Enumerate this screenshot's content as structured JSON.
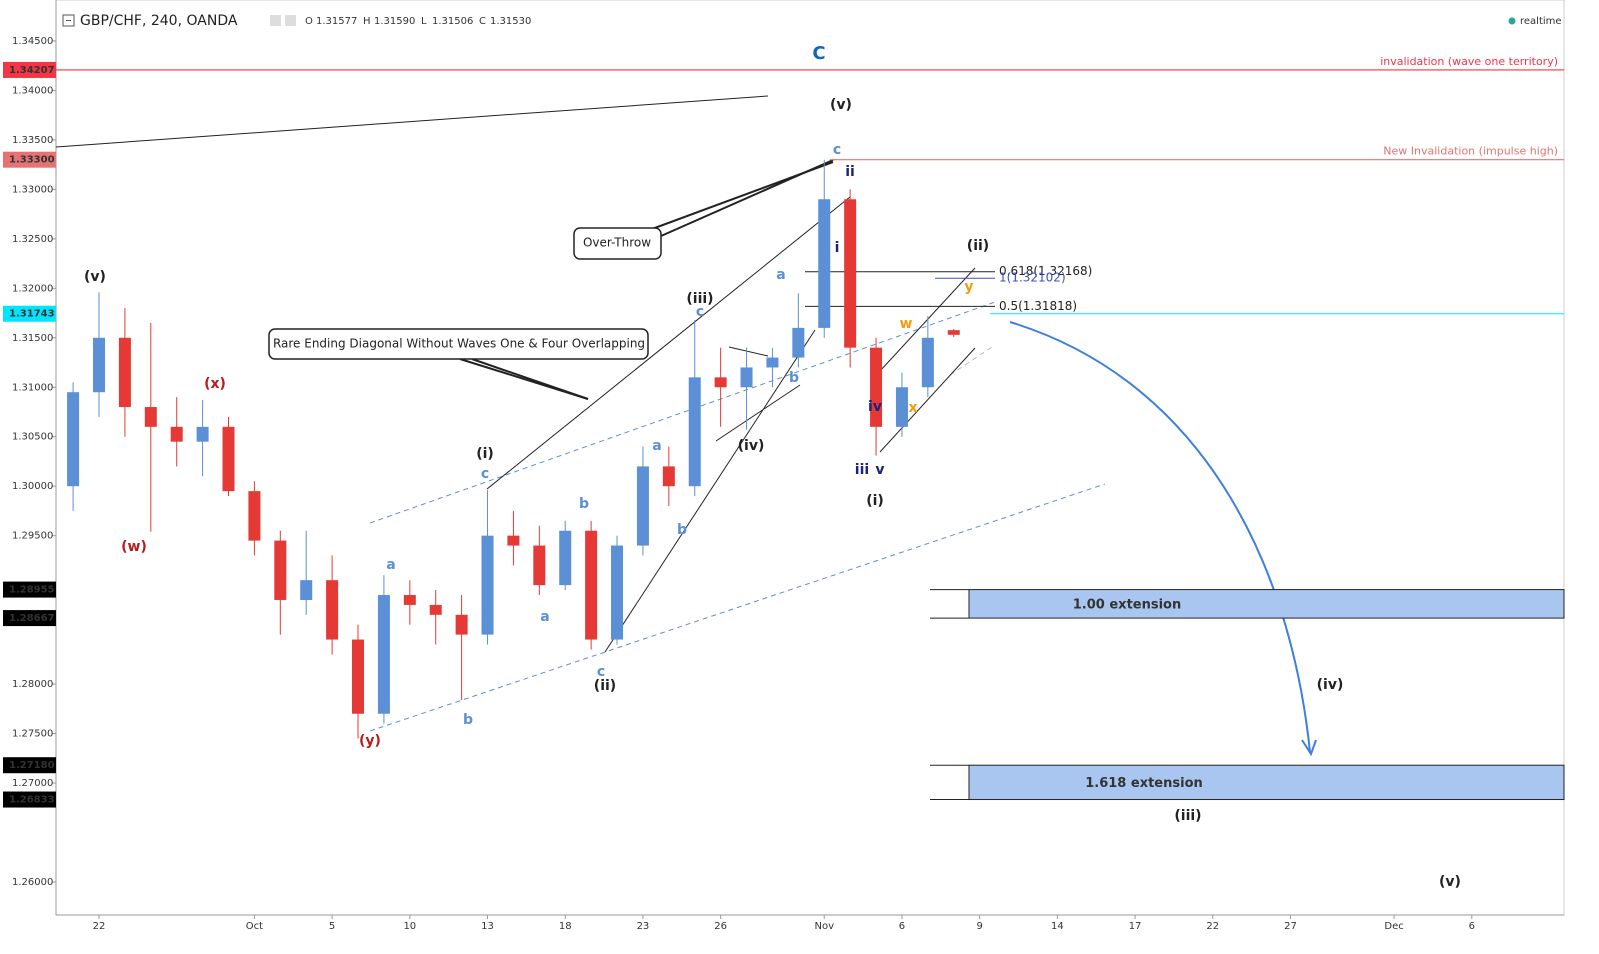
{
  "chart_data": {
    "type": "candlestick",
    "title": "GBP/CHF, 240, OANDA",
    "ohlc": [
      {
        "name": "O",
        "value": 1.31577,
        "label": "1.31577"
      },
      {
        "name": "H",
        "value": 1.3159,
        "label": "1.31590"
      },
      {
        "name": "L",
        "value": 1.31506,
        "label": "1.31506"
      },
      {
        "name": "C",
        "value": 1.3153,
        "label": "1.31530"
      }
    ],
    "status": "realtime",
    "up_color": "#5b8fd6",
    "down_color": "#e53935",
    "xlim": [
      -1.66,
      56.56
    ],
    "ylim": [
      1.25666,
      1.34914
    ],
    "xticks": [
      {
        "value": 0,
        "label": "22"
      },
      {
        "value": 6,
        "label": "Oct"
      },
      {
        "value": 9,
        "label": "5"
      },
      {
        "value": 12,
        "label": "10"
      },
      {
        "value": 15,
        "label": "13"
      },
      {
        "value": 18,
        "label": "18"
      },
      {
        "value": 21,
        "label": "23"
      },
      {
        "value": 24,
        "label": "26"
      },
      {
        "value": 28,
        "label": "Nov"
      },
      {
        "value": 31,
        "label": "6"
      },
      {
        "value": 34,
        "label": "9"
      },
      {
        "value": 37,
        "label": "14"
      },
      {
        "value": 40,
        "label": "17"
      },
      {
        "value": 43,
        "label": "22"
      },
      {
        "value": 46,
        "label": "27"
      },
      {
        "value": 50,
        "label": "Dec"
      },
      {
        "value": 53,
        "label": "6"
      }
    ],
    "yticks": [
      {
        "value": 1.345,
        "label": "1.34500"
      },
      {
        "value": 1.34,
        "label": "1.34000"
      },
      {
        "value": 1.335,
        "label": "1.33500"
      },
      {
        "value": 1.33,
        "label": "1.33000"
      },
      {
        "value": 1.325,
        "label": "1.32500"
      },
      {
        "value": 1.32,
        "label": "1.32000"
      },
      {
        "value": 1.315,
        "label": "1.31500"
      },
      {
        "value": 1.31,
        "label": "1.31000"
      },
      {
        "value": 1.305,
        "label": "1.30500"
      },
      {
        "value": 1.3,
        "label": "1.30000"
      },
      {
        "value": 1.295,
        "label": "1.29500"
      },
      {
        "value": 1.28,
        "label": "1.28000"
      },
      {
        "value": 1.275,
        "label": "1.27500"
      },
      {
        "value": 1.27,
        "label": "1.27000"
      },
      {
        "value": 1.26,
        "label": "1.26000"
      }
    ],
    "candles": {
      "x": [
        -1,
        0,
        1,
        2,
        3,
        4,
        5,
        6,
        7,
        8,
        9,
        10,
        11,
        12,
        13,
        14,
        15,
        16,
        17,
        18,
        19,
        20,
        21,
        22,
        23,
        24,
        25,
        26,
        27,
        28,
        29,
        30,
        31,
        32,
        33
      ],
      "open": [
        1.3,
        1.3095,
        1.315,
        1.308,
        1.306,
        1.3045,
        1.306,
        1.2995,
        1.2945,
        1.2885,
        1.2905,
        1.2845,
        1.277,
        1.289,
        1.288,
        1.287,
        1.285,
        1.295,
        1.294,
        1.29,
        1.2955,
        1.2845,
        1.294,
        1.302,
        1.3,
        1.311,
        1.31,
        1.312,
        1.313,
        1.316,
        1.329,
        1.314,
        1.306,
        1.31,
        1.31577
      ],
      "high": [
        1.3105,
        1.3196,
        1.318,
        1.3165,
        1.309,
        1.3087,
        1.307,
        1.3005,
        1.2955,
        1.2955,
        1.293,
        1.286,
        1.291,
        1.2905,
        1.2895,
        1.289,
        1.2996,
        1.2975,
        1.296,
        1.2965,
        1.2965,
        1.295,
        1.304,
        1.304,
        1.3168,
        1.314,
        1.314,
        1.314,
        1.3195,
        1.333,
        1.33,
        1.315,
        1.3115,
        1.3172,
        1.3159
      ],
      "low": [
        1.2975,
        1.307,
        1.305,
        1.2954,
        1.302,
        1.301,
        1.299,
        1.293,
        1.285,
        1.287,
        1.283,
        1.2745,
        1.276,
        1.286,
        1.284,
        1.2784,
        1.284,
        1.292,
        1.289,
        1.2895,
        1.2835,
        1.284,
        1.293,
        1.298,
        1.299,
        1.306,
        1.3057,
        1.31,
        1.312,
        1.315,
        1.312,
        1.3031,
        1.305,
        1.309,
        1.31506
      ],
      "close": [
        1.3095,
        1.315,
        1.308,
        1.306,
        1.3045,
        1.306,
        1.2995,
        1.2945,
        1.2885,
        1.2905,
        1.2845,
        1.277,
        1.289,
        1.288,
        1.287,
        1.285,
        1.295,
        1.294,
        1.29,
        1.2955,
        1.2845,
        1.294,
        1.302,
        1.3,
        1.311,
        1.31,
        1.312,
        1.313,
        1.316,
        1.329,
        1.314,
        1.306,
        1.31,
        1.315,
        1.3153
      ]
    },
    "price_labels": [
      {
        "value": 1.34207,
        "label": "1.34207",
        "color": "#f23645"
      },
      {
        "value": 1.333,
        "label": "1.33300",
        "color": "#e57373"
      },
      {
        "value": 1.31743,
        "label": "1.31743",
        "color": "#00e5ff"
      },
      {
        "value": 1.28955,
        "label": "1.28955",
        "color": "#000000"
      },
      {
        "value": 1.28667,
        "label": "1.28667",
        "color": "#000000"
      },
      {
        "value": 1.2718,
        "label": "1.27180",
        "color": "#000000"
      },
      {
        "value": 1.26833,
        "label": "1.26833",
        "color": "#000000"
      }
    ],
    "levels": [
      {
        "value": 1.34207,
        "text": "invalidation (wave one territory)",
        "color": "#f23645"
      },
      {
        "value": 1.333,
        "text": "New Invalidation (impulse high)",
        "color": "#e57373"
      }
    ],
    "fib": [
      {
        "value": 1.32168,
        "label": "0.618(1.32168)",
        "color": "#222222"
      },
      {
        "value": 1.32102,
        "label": "1(1.32102)",
        "color": "#3f51b5"
      },
      {
        "value": 1.31818,
        "label": "0.5(1.31818)",
        "color": "#222222"
      }
    ],
    "zones": [
      {
        "label": "1.00 extension",
        "top": 1.28955,
        "bottom": 1.28667
      },
      {
        "label": "1.618 extension",
        "top": 1.2718,
        "bottom": 1.26833
      }
    ],
    "callouts": [
      "Over-Throw",
      "Rare Ending Diagonal Without Waves One & Four Overlapping"
    ],
    "annotations": [
      {
        "text": "C",
        "color": "#1565c0"
      },
      {
        "text": "(v)",
        "color": "#222"
      },
      {
        "text": "c",
        "color": "#5b8fd6"
      },
      {
        "text": "ii",
        "color": "#1a237e"
      },
      {
        "text": "i",
        "color": "#1a237e"
      },
      {
        "text": "(ii)",
        "color": "#222"
      },
      {
        "text": "y",
        "color": "#f39c12"
      },
      {
        "text": "w",
        "color": "#f39c12"
      },
      {
        "text": "x",
        "color": "#f39c12"
      },
      {
        "text": "iv",
        "color": "#1a237e"
      },
      {
        "text": "iii",
        "color": "#1a237e"
      },
      {
        "text": "v",
        "color": "#1a237e"
      },
      {
        "text": "(i)",
        "color": "#222"
      },
      {
        "text": "a",
        "color": "#5b8fd6"
      },
      {
        "text": "b",
        "color": "#5b8fd6"
      },
      {
        "text": "(iii)",
        "color": "#222"
      },
      {
        "text": "c",
        "color": "#5b8fd6"
      },
      {
        "text": "(iv)",
        "color": "#222"
      },
      {
        "text": "a",
        "color": "#5b8fd6"
      },
      {
        "text": "b",
        "color": "#5b8fd6"
      },
      {
        "text": "b",
        "color": "#5b8fd6"
      },
      {
        "text": "a",
        "color": "#5b8fd6"
      },
      {
        "text": "c",
        "color": "#5b8fd6"
      },
      {
        "text": "(ii)",
        "color": "#222"
      },
      {
        "text": "(i)",
        "color": "#222"
      },
      {
        "text": "c",
        "color": "#5b8fd6"
      },
      {
        "text": "a",
        "color": "#5b8fd6"
      },
      {
        "text": "b",
        "color": "#5b8fd6"
      },
      {
        "text": "(y)",
        "color": "#b71c1c"
      },
      {
        "text": "(v)",
        "color": "#222"
      },
      {
        "text": "(w)",
        "color": "#b71c1c"
      },
      {
        "text": "(x)",
        "color": "#b71c1c"
      },
      {
        "text": "(iv)",
        "color": "#222"
      },
      {
        "text": "(iii)",
        "color": "#222"
      },
      {
        "text": "(v)",
        "color": "#222"
      }
    ]
  }
}
